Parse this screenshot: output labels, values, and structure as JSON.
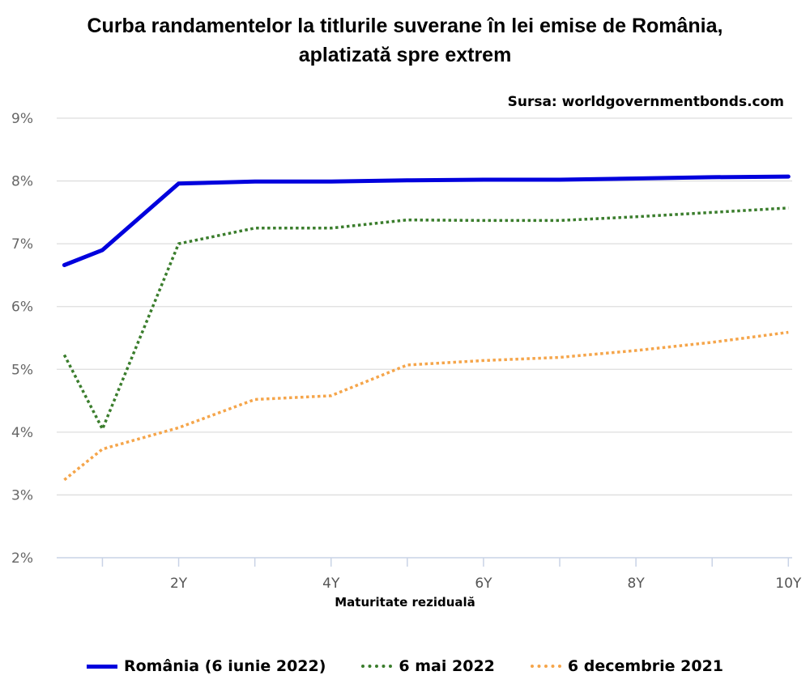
{
  "title_line1": "Curba randamentelor la titlurile suverane în lei emise de România,",
  "title_line2": "aplatizată spre extrem",
  "source": "Sursa: worldgovernmentbonds.com",
  "chart_data": {
    "type": "line",
    "xlabel": "Maturitate reziduală",
    "ylabel": "",
    "x": [
      0.5,
      1,
      2,
      3,
      4,
      5,
      6,
      7,
      8,
      9,
      10
    ],
    "xlim": [
      0.4,
      10.05
    ],
    "ylim": [
      2,
      9
    ],
    "x_ticks": [
      2,
      4,
      6,
      8,
      10
    ],
    "x_tick_labels": [
      "2Y",
      "4Y",
      "6Y",
      "8Y",
      "10Y"
    ],
    "y_ticks": [
      2,
      3,
      4,
      5,
      6,
      7,
      8,
      9
    ],
    "y_tick_labels": [
      "2%",
      "3%",
      "4%",
      "5%",
      "6%",
      "7%",
      "8%",
      "9%"
    ],
    "grid": true,
    "legend_position": "bottom",
    "series": [
      {
        "name": "România (6 iunie 2022)",
        "color": "#0000dd",
        "style": "solid",
        "values": [
          6.66,
          6.9,
          7.96,
          7.99,
          7.99,
          8.01,
          8.02,
          8.02,
          8.04,
          8.06,
          8.07
        ]
      },
      {
        "name": "6 mai 2022",
        "color": "#3a7d2c",
        "style": "dotted",
        "values": [
          5.23,
          4.05,
          7.0,
          7.25,
          7.25,
          7.38,
          7.37,
          7.37,
          7.43,
          7.5,
          7.57
        ]
      },
      {
        "name": "6 decembrie 2021",
        "color": "#f5a54a",
        "style": "dotted",
        "values": [
          3.24,
          3.73,
          4.07,
          4.52,
          4.58,
          5.07,
          5.14,
          5.19,
          5.3,
          5.43,
          5.59
        ]
      }
    ]
  }
}
